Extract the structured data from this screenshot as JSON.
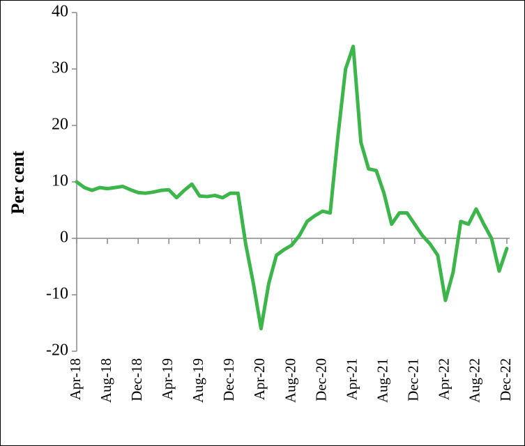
{
  "chart_data": {
    "type": "line",
    "y_label": "Per cent",
    "categories": [
      "Apr-18",
      null,
      null,
      null,
      "Aug-18",
      null,
      null,
      null,
      "Dec-18",
      null,
      null,
      null,
      "Apr-19",
      null,
      null,
      null,
      "Aug-19",
      null,
      null,
      null,
      "Dec-19",
      null,
      null,
      null,
      "Apr-20",
      null,
      null,
      null,
      "Aug-20",
      null,
      null,
      null,
      "Dec-20",
      null,
      null,
      null,
      "Apr-21",
      null,
      null,
      null,
      "Aug-21",
      null,
      null,
      null,
      "Dec-21",
      null,
      null,
      null,
      "Apr-22",
      null,
      null,
      null,
      "Aug-22",
      null,
      null,
      null,
      "Dec-22"
    ],
    "series": [
      {
        "color": "#3cb54a",
        "values": [
          10,
          9,
          8.5,
          9,
          8.8,
          9,
          9.2,
          8.6,
          8.1,
          8,
          8.2,
          8.5,
          8.6,
          7.2,
          8.5,
          9.6,
          7.5,
          7.4,
          7.6,
          7.2,
          8,
          8,
          -1,
          -8,
          -16,
          -8,
          -3,
          -2,
          -1.2,
          0.5,
          3,
          4,
          4.8,
          4.5,
          18,
          30,
          34,
          17,
          12.3,
          12,
          8,
          2.5,
          4.5,
          4.5,
          2.5,
          0.5,
          -1,
          -3,
          -11,
          -6,
          3,
          2.5,
          5.2,
          2.5,
          0,
          -5.8,
          -1.8
        ]
      }
    ],
    "ylim": [
      -20,
      40
    ],
    "yticks": [
      -20,
      -10,
      0,
      10,
      20,
      30,
      40
    ]
  }
}
